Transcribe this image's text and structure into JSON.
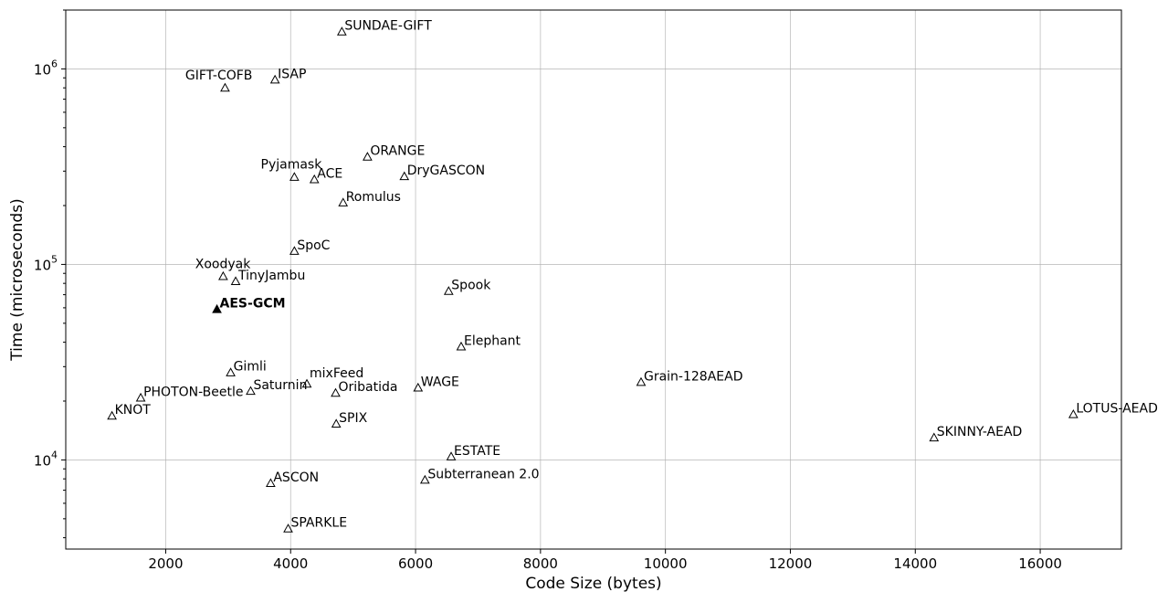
{
  "chart_data": {
    "type": "scatter",
    "title": "",
    "xlabel": "Code Size (bytes)",
    "ylabel": "Time (microseconds)",
    "xlim": [
      400,
      17300
    ],
    "ylim": [
      3500,
      2000000
    ],
    "yscale": "log",
    "grid": true,
    "marker": "triangle-up",
    "xticks": [
      2000,
      4000,
      6000,
      8000,
      10000,
      12000,
      14000,
      16000
    ],
    "xtick_labels": [
      "2000",
      "4000",
      "6000",
      "8000",
      "10000",
      "12000",
      "14000",
      "16000"
    ],
    "yticks": [
      10000,
      100000,
      1000000
    ],
    "ytick_labels": [
      {
        "base": "10",
        "exp": "4"
      },
      {
        "base": "10",
        "exp": "5"
      },
      {
        "base": "10",
        "exp": "6"
      }
    ],
    "points": [
      {
        "label": "SUNDAE-GIFT",
        "x": 4820,
        "y": 1550000
      },
      {
        "label": "GIFT-COFB",
        "x": 2950,
        "y": 800000,
        "label_pos": "above-left"
      },
      {
        "label": "ISAP",
        "x": 3750,
        "y": 880000
      },
      {
        "label": "ORANGE",
        "x": 5230,
        "y": 355000
      },
      {
        "label": "Pyjamask",
        "x": 4060,
        "y": 280000,
        "label_pos": "above-left"
      },
      {
        "label": "ACE",
        "x": 4380,
        "y": 272000
      },
      {
        "label": "DryGASCON",
        "x": 5820,
        "y": 282000
      },
      {
        "label": "Romulus",
        "x": 4840,
        "y": 207000
      },
      {
        "label": "SpoC",
        "x": 4060,
        "y": 117000
      },
      {
        "label": "Xoodyak",
        "x": 2920,
        "y": 87000,
        "label_pos": "above-left"
      },
      {
        "label": "TinyJambu",
        "x": 3120,
        "y": 82000
      },
      {
        "label": "Spook",
        "x": 6530,
        "y": 73000
      },
      {
        "label": "AES-GCM",
        "x": 2820,
        "y": 59000,
        "highlight": true
      },
      {
        "label": "Elephant",
        "x": 6730,
        "y": 38000
      },
      {
        "label": "Gimli",
        "x": 3040,
        "y": 28000
      },
      {
        "label": "mixFeed",
        "x": 4260,
        "y": 24500,
        "label_pos": "above-right"
      },
      {
        "label": "PHOTON-Beetle",
        "x": 1600,
        "y": 20800
      },
      {
        "label": "Saturnin",
        "x": 3360,
        "y": 22500
      },
      {
        "label": "Oribatida",
        "x": 4720,
        "y": 22000
      },
      {
        "label": "WAGE",
        "x": 6040,
        "y": 23400
      },
      {
        "label": "Grain-128AEAD",
        "x": 9610,
        "y": 25000
      },
      {
        "label": "KNOT",
        "x": 1140,
        "y": 16800
      },
      {
        "label": "SPIX",
        "x": 4730,
        "y": 15300
      },
      {
        "label": "LOTUS-AEAD",
        "x": 16530,
        "y": 17100
      },
      {
        "label": "SKINNY-AEAD",
        "x": 14300,
        "y": 13000
      },
      {
        "label": "ESTATE",
        "x": 6570,
        "y": 10400
      },
      {
        "label": "ASCON",
        "x": 3680,
        "y": 7600
      },
      {
        "label": "Subterranean 2.0",
        "x": 6150,
        "y": 7900
      },
      {
        "label": "SPARKLE",
        "x": 3960,
        "y": 4450
      }
    ]
  }
}
